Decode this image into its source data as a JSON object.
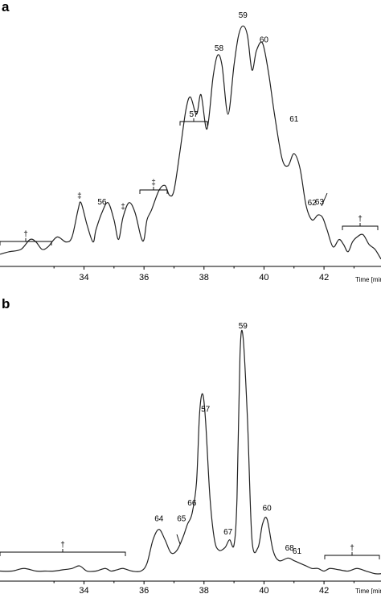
{
  "chart_data": [
    {
      "type": "line",
      "panel": "a",
      "xlabel": "Time [min]",
      "xlim": [
        31.2,
        43.9
      ],
      "ylim": [
        0,
        100
      ],
      "xticks": [
        34,
        36,
        38,
        40,
        42
      ],
      "series": [
        {
          "x": [
            31.2,
            31.5,
            31.9,
            32.2,
            32.4,
            32.6,
            32.8,
            33.1,
            33.4,
            33.6,
            33.8,
            33.9,
            34.1,
            34.3,
            34.4,
            34.6,
            34.8,
            35.0,
            35.15,
            35.3,
            35.5,
            35.7,
            35.9,
            36.0,
            36.1,
            36.25,
            36.5,
            36.7,
            36.85,
            37.0,
            37.2,
            37.4,
            37.55,
            37.75,
            37.9,
            38.1,
            38.3,
            38.45,
            38.6,
            38.8,
            39.0,
            39.15,
            39.3,
            39.45,
            39.6,
            39.75,
            39.95,
            40.15,
            40.35,
            40.6,
            40.8,
            41.0,
            41.2,
            41.4,
            41.6,
            41.8,
            41.95,
            42.1,
            42.3,
            42.5,
            42.65,
            42.8,
            42.95,
            43.1,
            43.3,
            43.5,
            43.7,
            43.9
          ],
          "y": [
            3,
            4,
            5,
            9,
            8,
            5,
            6,
            10,
            8,
            10,
            21,
            24,
            15,
            8,
            13,
            20,
            24,
            17,
            9,
            18,
            24,
            20,
            10,
            9,
            17,
            21,
            29,
            31,
            27,
            29,
            45,
            62,
            67,
            60,
            68,
            54,
            75,
            84,
            80,
            60,
            80,
            92,
            96,
            92,
            78,
            86,
            89,
            77,
            60,
            42,
            39,
            44,
            38,
            23,
            17,
            19,
            18,
            13,
            6,
            9,
            7,
            4,
            8,
            10,
            11,
            7,
            5,
            1
          ]
        }
      ],
      "annotations": [
        {
          "label": "56",
          "x": 34.6
        },
        {
          "label": "57",
          "x": 37.8
        },
        {
          "label": "58",
          "x": 38.5
        },
        {
          "label": "59",
          "x": 39.3
        },
        {
          "label": "60",
          "x": 40.0
        },
        {
          "label": "61",
          "x": 41.0
        },
        {
          "label": "62",
          "x": 41.6
        },
        {
          "label": "63",
          "x": 41.85
        },
        {
          "label": "‡",
          "x": 33.85
        },
        {
          "label": "‡",
          "x": 35.3
        },
        {
          "label": "‡",
          "x": 36.6
        },
        {
          "label": "†",
          "x": 32.0
        },
        {
          "label": "†",
          "x": 43.1
        }
      ]
    },
    {
      "type": "line",
      "panel": "b",
      "xlabel": "Time [min]",
      "xlim": [
        31.2,
        43.9
      ],
      "ylim": [
        0,
        100
      ],
      "xticks": [
        34,
        36,
        38,
        40,
        42
      ],
      "series": [
        {
          "x": [
            31.2,
            31.6,
            32.0,
            32.4,
            32.7,
            33.0,
            33.3,
            33.6,
            33.85,
            34.1,
            34.4,
            34.7,
            34.9,
            35.1,
            35.3,
            35.6,
            35.9,
            36.1,
            36.3,
            36.5,
            36.7,
            36.9,
            37.1,
            37.3,
            37.45,
            37.6,
            37.75,
            37.85,
            37.95,
            38.05,
            38.2,
            38.35,
            38.5,
            38.7,
            38.85,
            39.0,
            39.1,
            39.2,
            39.3,
            39.45,
            39.6,
            39.8,
            39.95,
            40.1,
            40.3,
            40.5,
            40.8,
            41.0,
            41.2,
            41.4,
            41.6,
            41.8,
            42.0,
            42.2,
            42.5,
            42.8,
            43.1,
            43.4,
            43.7,
            43.9
          ],
          "y": [
            2,
            2,
            3,
            2,
            2,
            2,
            2.5,
            3,
            4,
            2,
            2,
            3,
            2,
            2.5,
            3,
            2,
            2,
            5,
            14,
            18,
            14,
            9,
            10,
            15,
            20,
            24,
            36,
            62,
            70,
            60,
            30,
            14,
            10,
            11,
            14,
            12,
            30,
            85,
            92,
            60,
            14,
            11,
            20,
            22,
            10,
            6,
            7,
            6,
            5,
            4,
            3,
            3,
            2,
            3,
            2.5,
            2,
            3,
            2,
            1,
            1
          ]
        }
      ],
      "annotations": [
        {
          "label": "57",
          "x": 38.05
        },
        {
          "label": "59",
          "x": 39.3
        },
        {
          "label": "60",
          "x": 40.1
        },
        {
          "label": "64",
          "x": 36.5
        },
        {
          "label": "65",
          "x": 37.25
        },
        {
          "label": "66",
          "x": 37.6
        },
        {
          "label": "67",
          "x": 38.8
        },
        {
          "label": "68",
          "x": 40.85
        },
        {
          "label": "61",
          "x": 41.1
        },
        {
          "label": "†",
          "x": 33.5
        },
        {
          "label": "†",
          "x": 42.75
        }
      ]
    }
  ],
  "panels": {
    "a": {
      "letter": "a",
      "axis_title": "Time [min]"
    },
    "b": {
      "letter": "b",
      "axis_title": "Time [min]"
    }
  }
}
